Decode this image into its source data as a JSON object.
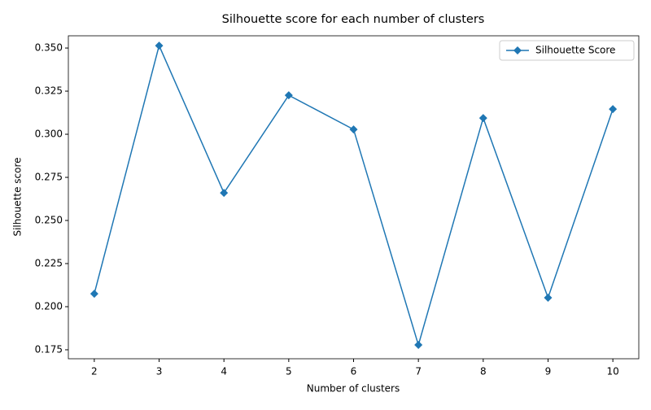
{
  "chart_data": {
    "type": "line",
    "title": "Silhouette score for each number of clusters",
    "x_label": "Number of clusters",
    "y_label": "Silhouette score",
    "x": [
      2,
      3,
      4,
      5,
      6,
      7,
      8,
      9,
      10
    ],
    "series": [
      {
        "name": "Silhouette Score",
        "color": "#1f77b4",
        "marker": "diamond",
        "values": [
          0.2075,
          0.3514,
          0.266,
          0.3226,
          0.3028,
          0.1778,
          0.3094,
          0.2052,
          0.3146
        ]
      }
    ],
    "xlim": [
      1.6,
      10.4
    ],
    "xticks": [
      2,
      3,
      4,
      5,
      6,
      7,
      8,
      9,
      10
    ],
    "ylim": [
      0.1698,
      0.3571
    ],
    "yticks": [
      0.175,
      {
        "value": 0.2,
        "label": "0.200"
      },
      0.225,
      {
        "value": 0.25,
        "label": "0.250"
      },
      0.275,
      {
        "value": 0.3,
        "label": "0.300"
      },
      0.325,
      {
        "value": 0.35,
        "label": "0.350"
      }
    ],
    "legend": "upper right"
  }
}
